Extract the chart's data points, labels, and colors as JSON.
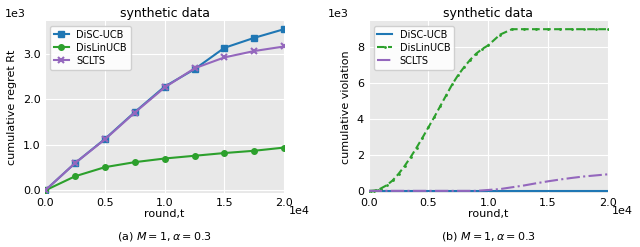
{
  "left_plot": {
    "title": "synthetic data",
    "xlabel": "round,t",
    "ylabel": "cumulative regret Rt",
    "xlim": [
      0,
      20000
    ],
    "disc_ucb": {
      "x": [
        0,
        2500,
        5000,
        7500,
        10000,
        12500,
        15000,
        17500,
        20000
      ],
      "y": [
        0,
        600,
        1130,
        1720,
        2280,
        2660,
        3130,
        3350,
        3540
      ],
      "color": "#1f77b4",
      "linestyle": "-",
      "marker": "s",
      "label": "DiSC-UCB"
    },
    "dislinucb": {
      "x": [
        0,
        2500,
        5000,
        7500,
        10000,
        12500,
        15000,
        17500,
        20000
      ],
      "y": [
        0,
        310,
        510,
        620,
        700,
        760,
        820,
        870,
        940
      ],
      "color": "#2ca02c",
      "linestyle": "-",
      "marker": "o",
      "label": "DisLinUCB"
    },
    "sclts": {
      "x": [
        0,
        2500,
        5000,
        7500,
        10000,
        12500,
        15000,
        17500,
        20000
      ],
      "y": [
        0,
        600,
        1120,
        1710,
        2260,
        2680,
        2920,
        3060,
        3160
      ],
      "color": "#9467bd",
      "linestyle": "-",
      "marker": "x",
      "label": "SCLTS"
    },
    "caption": "(a) $M=1, \\alpha=0.3$"
  },
  "right_plot": {
    "title": "synthetic data",
    "xlabel": "round,t",
    "ylabel": "cumulative violation",
    "xlim": [
      0,
      20000
    ],
    "disc_ucb": {
      "x": [
        0,
        500,
        1000,
        2000,
        3000,
        4000,
        5000,
        6000,
        7000,
        8000,
        9000,
        10000,
        11000,
        12000,
        13000,
        14000,
        15000,
        16000,
        17000,
        18000,
        19000,
        20000
      ],
      "y": [
        0,
        0,
        0,
        0,
        0,
        0,
        0,
        0,
        0,
        0,
        0,
        0,
        0,
        0,
        0,
        0,
        0,
        0,
        0,
        0,
        0,
        0
      ],
      "color": "#1f77b4",
      "linestyle": "-",
      "marker": "",
      "label": "DiSC-UCB"
    },
    "dislinucb": {
      "x": [
        0,
        200,
        400,
        600,
        800,
        1000,
        1500,
        2000,
        2500,
        3000,
        3500,
        4000,
        4500,
        5000,
        5500,
        6000,
        6500,
        7000,
        7500,
        8000,
        8500,
        9000,
        9500,
        10000,
        11000,
        12000,
        13000,
        14000,
        15000,
        16000,
        17000,
        18000,
        19000,
        20000
      ],
      "y": [
        0,
        5,
        15,
        35,
        70,
        130,
        310,
        580,
        950,
        1380,
        1870,
        2400,
        2960,
        3540,
        4120,
        4730,
        5340,
        5940,
        6460,
        6900,
        7300,
        7640,
        7900,
        8100,
        8700,
        9000,
        9000,
        9000,
        9000,
        9000,
        9000,
        9000,
        9000,
        9000
      ],
      "color": "#2ca02c",
      "linestyle": "--",
      "marker": ".",
      "markersize": 2,
      "label": "DisLinUCB"
    },
    "sclts": {
      "x": [
        0,
        1000,
        2000,
        3000,
        4000,
        5000,
        6000,
        7000,
        8000,
        9000,
        10000,
        11000,
        12000,
        13000,
        14000,
        15000,
        16000,
        17000,
        18000,
        19000,
        20000
      ],
      "y": [
        0,
        0,
        0,
        0,
        0,
        0,
        0,
        0,
        0,
        0,
        50,
        100,
        200,
        300,
        420,
        530,
        630,
        720,
        800,
        860,
        920
      ],
      "color": "#9467bd",
      "linestyle": "-.",
      "marker": "",
      "label": "SCLTS"
    },
    "caption": "(b) $M=1, \\alpha=0.3$"
  }
}
